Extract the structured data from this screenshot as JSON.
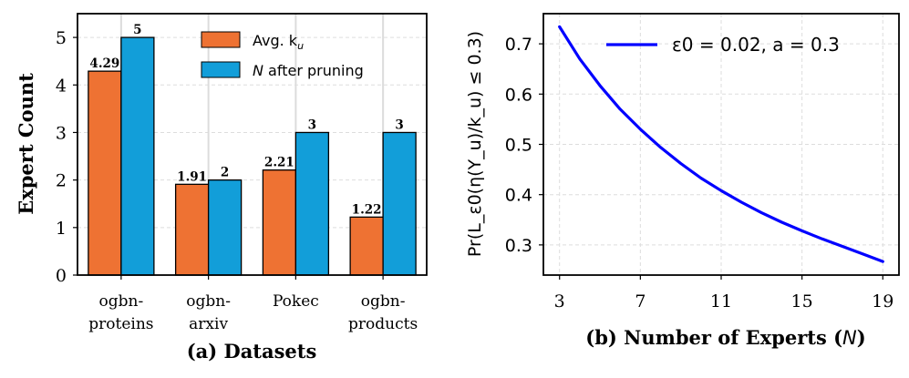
{
  "chart_data": [
    {
      "type": "bar",
      "title": "",
      "xlabel": "(a) Datasets",
      "ylabel": "Expert Count",
      "ylim": [
        0,
        5.5
      ],
      "yticks": [
        "0",
        "1",
        "2",
        "3",
        "4",
        "5"
      ],
      "grid": true,
      "legend_position": "top-right",
      "categories": [
        {
          "line1": "ogbn-",
          "line2": "proteins"
        },
        {
          "line1": "ogbn-",
          "line2": "arxiv"
        },
        {
          "line1": "Pokec",
          "line2": ""
        },
        {
          "line1": "ogbn-",
          "line2": "products"
        }
      ],
      "series": [
        {
          "name": "Avg. k",
          "name_sub": "u",
          "color": "#EE7233",
          "values": [
            4.29,
            1.91,
            2.21,
            1.22
          ],
          "labels": [
            "4.29",
            "1.91",
            "2.21",
            "1.22"
          ]
        },
        {
          "name": "N after pruning",
          "name_italic": "N",
          "name_rest": " after pruning",
          "color": "#129ED9",
          "values": [
            5,
            2,
            3,
            3
          ],
          "labels": [
            "5",
            "2",
            "3",
            "3"
          ]
        }
      ]
    },
    {
      "type": "line",
      "title": "",
      "xlabel": "(b) Number of Experts (N)",
      "xlabel_main": "(b) Number of Experts (",
      "xlabel_var": "N",
      "xlabel_end": ")",
      "ylabel": "Pr(L_ε0(η(Y_u)/k_u) ≤ 0.3)",
      "xlim": [
        2.2,
        19.8
      ],
      "ylim": [
        0.24,
        0.76
      ],
      "xticks": [
        "3",
        "7",
        "11",
        "15",
        "19"
      ],
      "yticks": [
        "0.3",
        "0.4",
        "0.5",
        "0.6",
        "0.7"
      ],
      "grid": true,
      "legend_position": "top-right",
      "series": [
        {
          "name": "ε0 = 0.02, a = 0.3",
          "color": "#0000FF",
          "x": [
            3,
            4,
            5,
            6,
            7,
            8,
            9,
            10,
            11,
            12,
            13,
            14,
            15,
            16,
            17,
            18,
            19
          ],
          "y": [
            0.734,
            0.67,
            0.617,
            0.57,
            0.53,
            0.494,
            0.462,
            0.433,
            0.408,
            0.385,
            0.364,
            0.345,
            0.328,
            0.312,
            0.297,
            0.282,
            0.267
          ]
        }
      ]
    }
  ]
}
